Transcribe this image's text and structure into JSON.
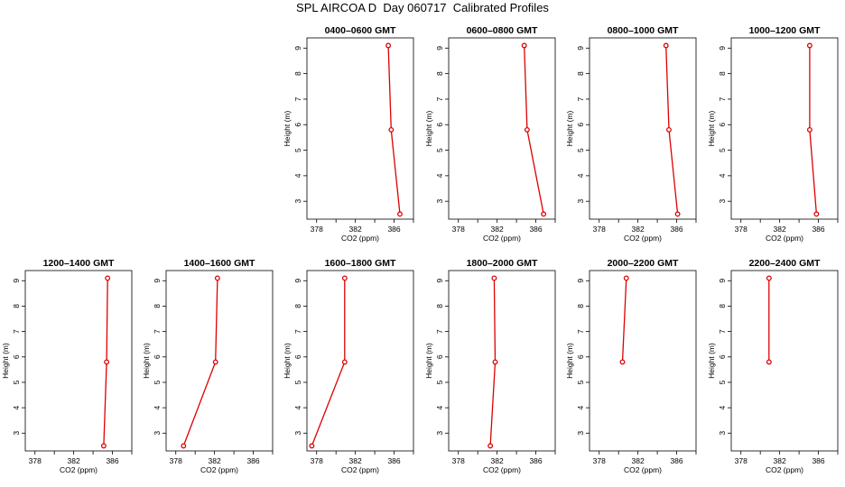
{
  "page": {
    "title": "SPL AIRCOA D  Day 060717  Calibrated Profiles"
  },
  "style": {
    "line_color": "#dd0000",
    "marker_color": "#dd0000",
    "axis_color": "#000000"
  },
  "axes": {
    "xlabel": "CO2 (ppm)",
    "ylabel": "Height (m)",
    "xlim": [
      377,
      388
    ],
    "ylim": [
      2.3,
      9.4
    ],
    "xticks": [
      378,
      380,
      382,
      384,
      386,
      388
    ],
    "xtick_labels": [
      "378",
      "",
      "382",
      "",
      "386",
      ""
    ],
    "yticks": [
      3,
      4,
      5,
      6,
      7,
      8,
      9
    ],
    "ytick_labels": [
      "3",
      "4",
      "5",
      "6",
      "7",
      "8",
      "9"
    ]
  },
  "chart_data": [
    {
      "type": "line",
      "title": "0400–0600 GMT",
      "x": [
        385.4,
        385.7,
        386.6
      ],
      "y": [
        9.1,
        5.8,
        2.5
      ]
    },
    {
      "type": "line",
      "title": "0600–0800 GMT",
      "x": [
        384.8,
        385.1,
        386.8
      ],
      "y": [
        9.1,
        5.8,
        2.5
      ]
    },
    {
      "type": "line",
      "title": "0800–1000 GMT",
      "x": [
        384.9,
        385.2,
        386.1
      ],
      "y": [
        9.1,
        5.8,
        2.5
      ]
    },
    {
      "type": "line",
      "title": "1000–1200 GMT",
      "x": [
        385.1,
        385.1,
        385.8
      ],
      "y": [
        9.1,
        5.8,
        2.5
      ]
    },
    {
      "type": "line",
      "title": "1200–1400 GMT",
      "x": [
        385.5,
        385.4,
        385.1
      ],
      "y": [
        9.1,
        5.8,
        2.5
      ]
    },
    {
      "type": "line",
      "title": "1400–1600 GMT",
      "x": [
        382.3,
        382.1,
        378.8
      ],
      "y": [
        9.1,
        5.8,
        2.5
      ]
    },
    {
      "type": "line",
      "title": "1600–1800 GMT",
      "x": [
        380.9,
        380.9,
        377.5
      ],
      "y": [
        9.1,
        5.8,
        2.5
      ]
    },
    {
      "type": "line",
      "title": "1800–2000 GMT",
      "x": [
        381.7,
        381.8,
        381.3
      ],
      "y": [
        9.1,
        5.8,
        2.5
      ]
    },
    {
      "type": "line",
      "title": "2000–2200 GMT",
      "x": [
        380.8,
        380.4
      ],
      "y": [
        9.1,
        5.8
      ]
    },
    {
      "type": "line",
      "title": "2200–2400 GMT",
      "x": [
        380.9,
        380.9
      ],
      "y": [
        9.1,
        5.8
      ]
    }
  ]
}
